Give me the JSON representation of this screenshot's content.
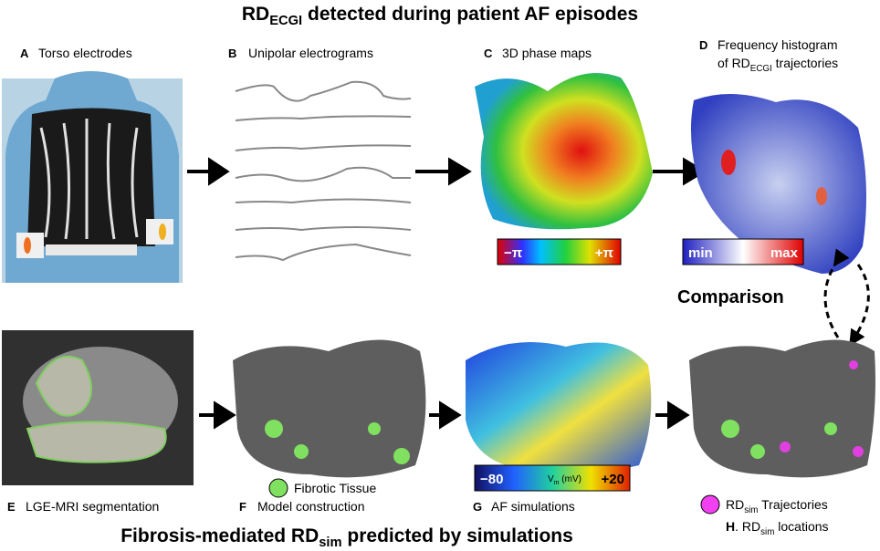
{
  "title": {
    "pre": "RD",
    "sub": "ECGI",
    "post": " detected during patient AF episodes"
  },
  "panels": [
    {
      "letter": "A",
      "label": "Torso electrodes"
    },
    {
      "letter": "B",
      "label": "Unipolar electrograms"
    },
    {
      "letter": "C",
      "label": "3D phase maps"
    },
    {
      "letter": "D",
      "label": "Frequency histogram",
      "label2": {
        "pre": "of RD",
        "sub": "ECGI",
        "post": " trajectories"
      }
    },
    {
      "letter": "E",
      "label": "LGE-MRI segmentation"
    },
    {
      "letter": "F",
      "label": "Model construction"
    },
    {
      "letter": "G",
      "label": "AF simulations"
    },
    {
      "letter": "H",
      "label": {
        "pre": ". RD",
        "sub": "sim",
        "post": " locations"
      }
    }
  ],
  "colorbars": {
    "phase": {
      "min": "−π",
      "max": "+π"
    },
    "frequency": {
      "min": "min",
      "max": "max"
    },
    "vm": {
      "min": "−80",
      "label_pre": "V",
      "label_sub": "m",
      "label_post": " (mV)",
      "max": "+20"
    }
  },
  "comparison": "Comparison",
  "legend": {
    "fibrotic": "Fibrotic Tissue",
    "rd": {
      "pre": "RD",
      "sub": "sim",
      "post": " Trajectories"
    }
  },
  "bottom_title": {
    "pre": "Fibrosis-mediated RD",
    "sub": "sim",
    "post": " predicted by simulations"
  }
}
